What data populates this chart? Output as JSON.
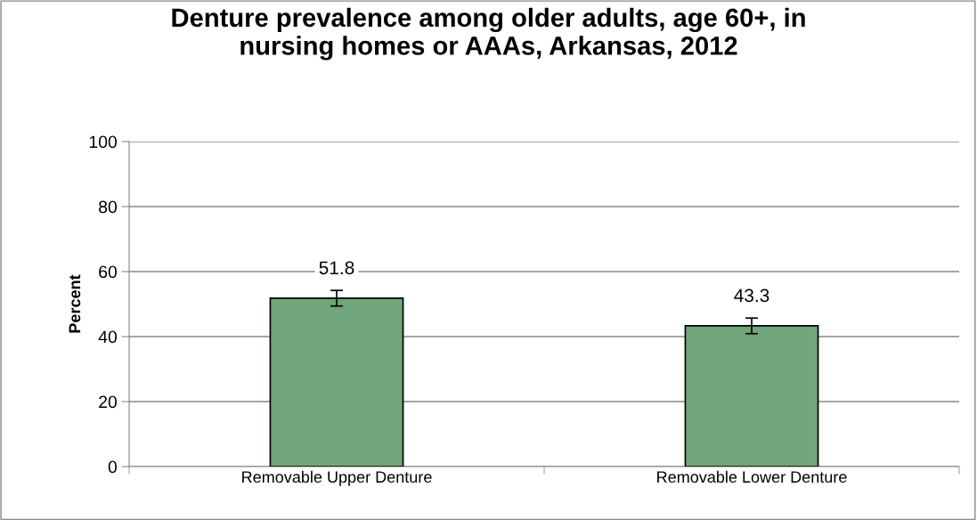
{
  "chart_data": {
    "type": "bar",
    "title": "Denture prevalence among older adults, age 60+, in\nnursing homes or AAAs, Arkansas, 2012",
    "ylabel": "Percent",
    "categories": [
      "Removable Upper Denture",
      "Removable Lower Denture"
    ],
    "values": [
      51.8,
      43.3
    ],
    "errors": [
      2.4,
      2.4
    ],
    "color": "#71a57b",
    "data_labels": true,
    "ylim": [
      0,
      100
    ],
    "yticks": [
      0,
      20,
      40,
      60,
      80,
      100
    ],
    "grid": "y",
    "legend": false
  }
}
